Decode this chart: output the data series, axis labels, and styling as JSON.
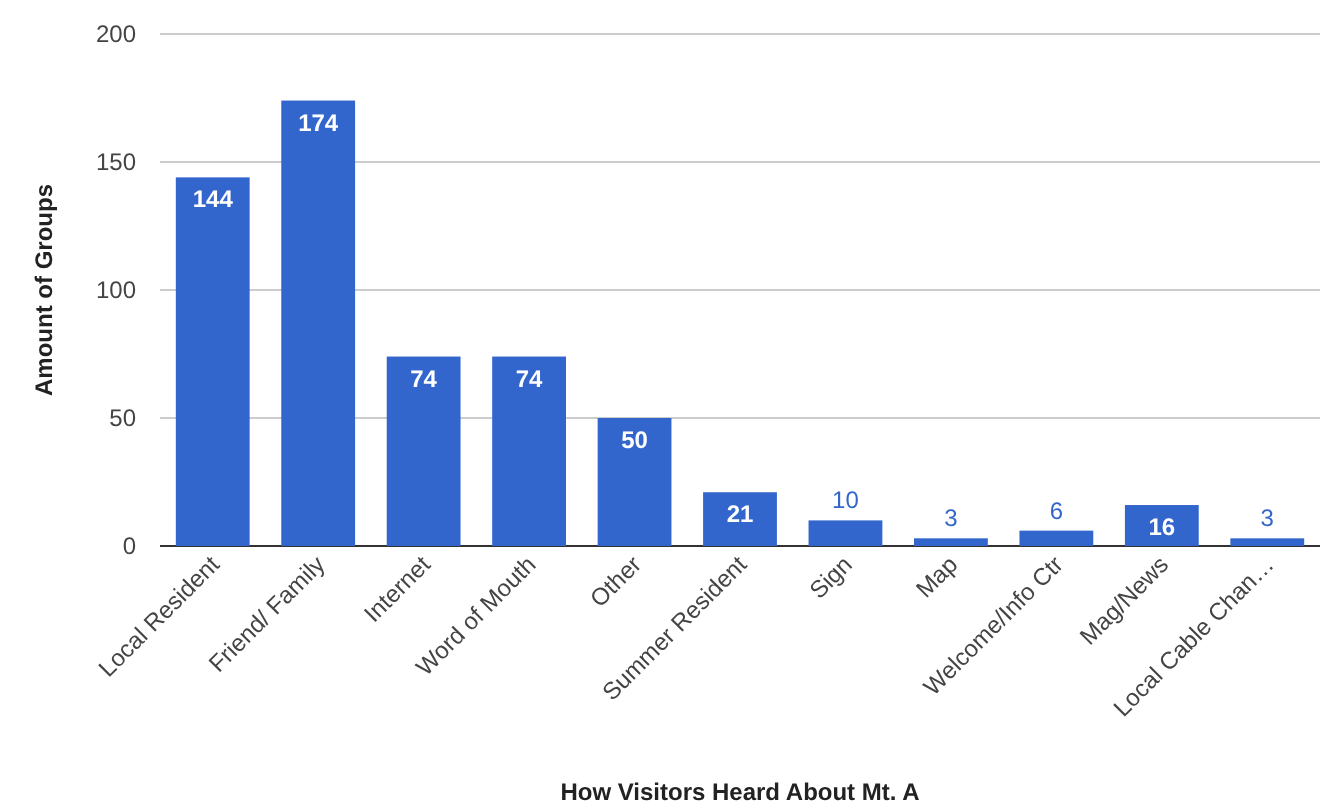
{
  "chart_data": {
    "type": "bar",
    "xlabel": "How Visitors Heard About Mt. A",
    "ylabel": "Amount of Groups",
    "categories": [
      "Local Resident",
      "Friend/ Family",
      "Internet",
      "Word of Mouth",
      "Other",
      "Summer Resident",
      "Sign",
      "Map",
      "Welcome/Info Ctr",
      "Mag/News",
      "Local Cable Chan…"
    ],
    "values": [
      144,
      174,
      74,
      74,
      50,
      21,
      10,
      3,
      6,
      16,
      3
    ],
    "color": "#3366cc",
    "ylim": [
      0,
      200
    ],
    "yticks": [
      0,
      50,
      100,
      150,
      200
    ],
    "grid": "y",
    "data_labels": true
  }
}
